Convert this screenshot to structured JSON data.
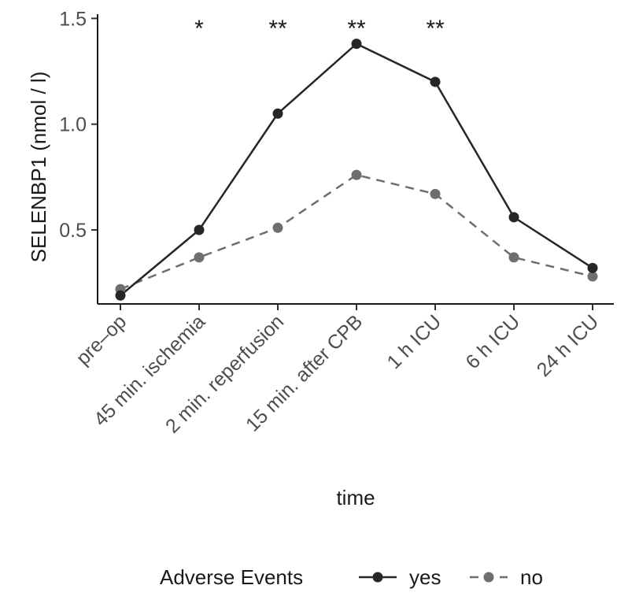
{
  "chart_data": {
    "type": "line",
    "categories": [
      "pre–op",
      "45 min. ischemia",
      "2 min. reperfusion",
      "15 min. after CPB",
      "1 h ICU",
      "6 h ICU",
      "24 h ICU"
    ],
    "series": [
      {
        "name": "yes",
        "values": [
          0.19,
          0.5,
          1.05,
          1.38,
          1.2,
          0.56,
          0.32
        ],
        "color": "#262626",
        "dash": "solid"
      },
      {
        "name": "no",
        "values": [
          0.22,
          0.37,
          0.51,
          0.76,
          0.67,
          0.37,
          0.28
        ],
        "color": "#6e6e6e",
        "dash": "dashed"
      }
    ],
    "significance": [
      "",
      "*",
      "**",
      "**",
      "**",
      "",
      ""
    ],
    "xlabel": "time",
    "ylabel": "SELENBP1 (nmol / l)",
    "yticks": [
      0.5,
      1.0,
      1.5
    ],
    "ytick_labels": [
      "0.5",
      "1.0",
      "1.5"
    ],
    "ylim": [
      0.15,
      1.52
    ],
    "legend": {
      "title": "Adverse Events",
      "position": "bottom"
    },
    "grid": false
  }
}
